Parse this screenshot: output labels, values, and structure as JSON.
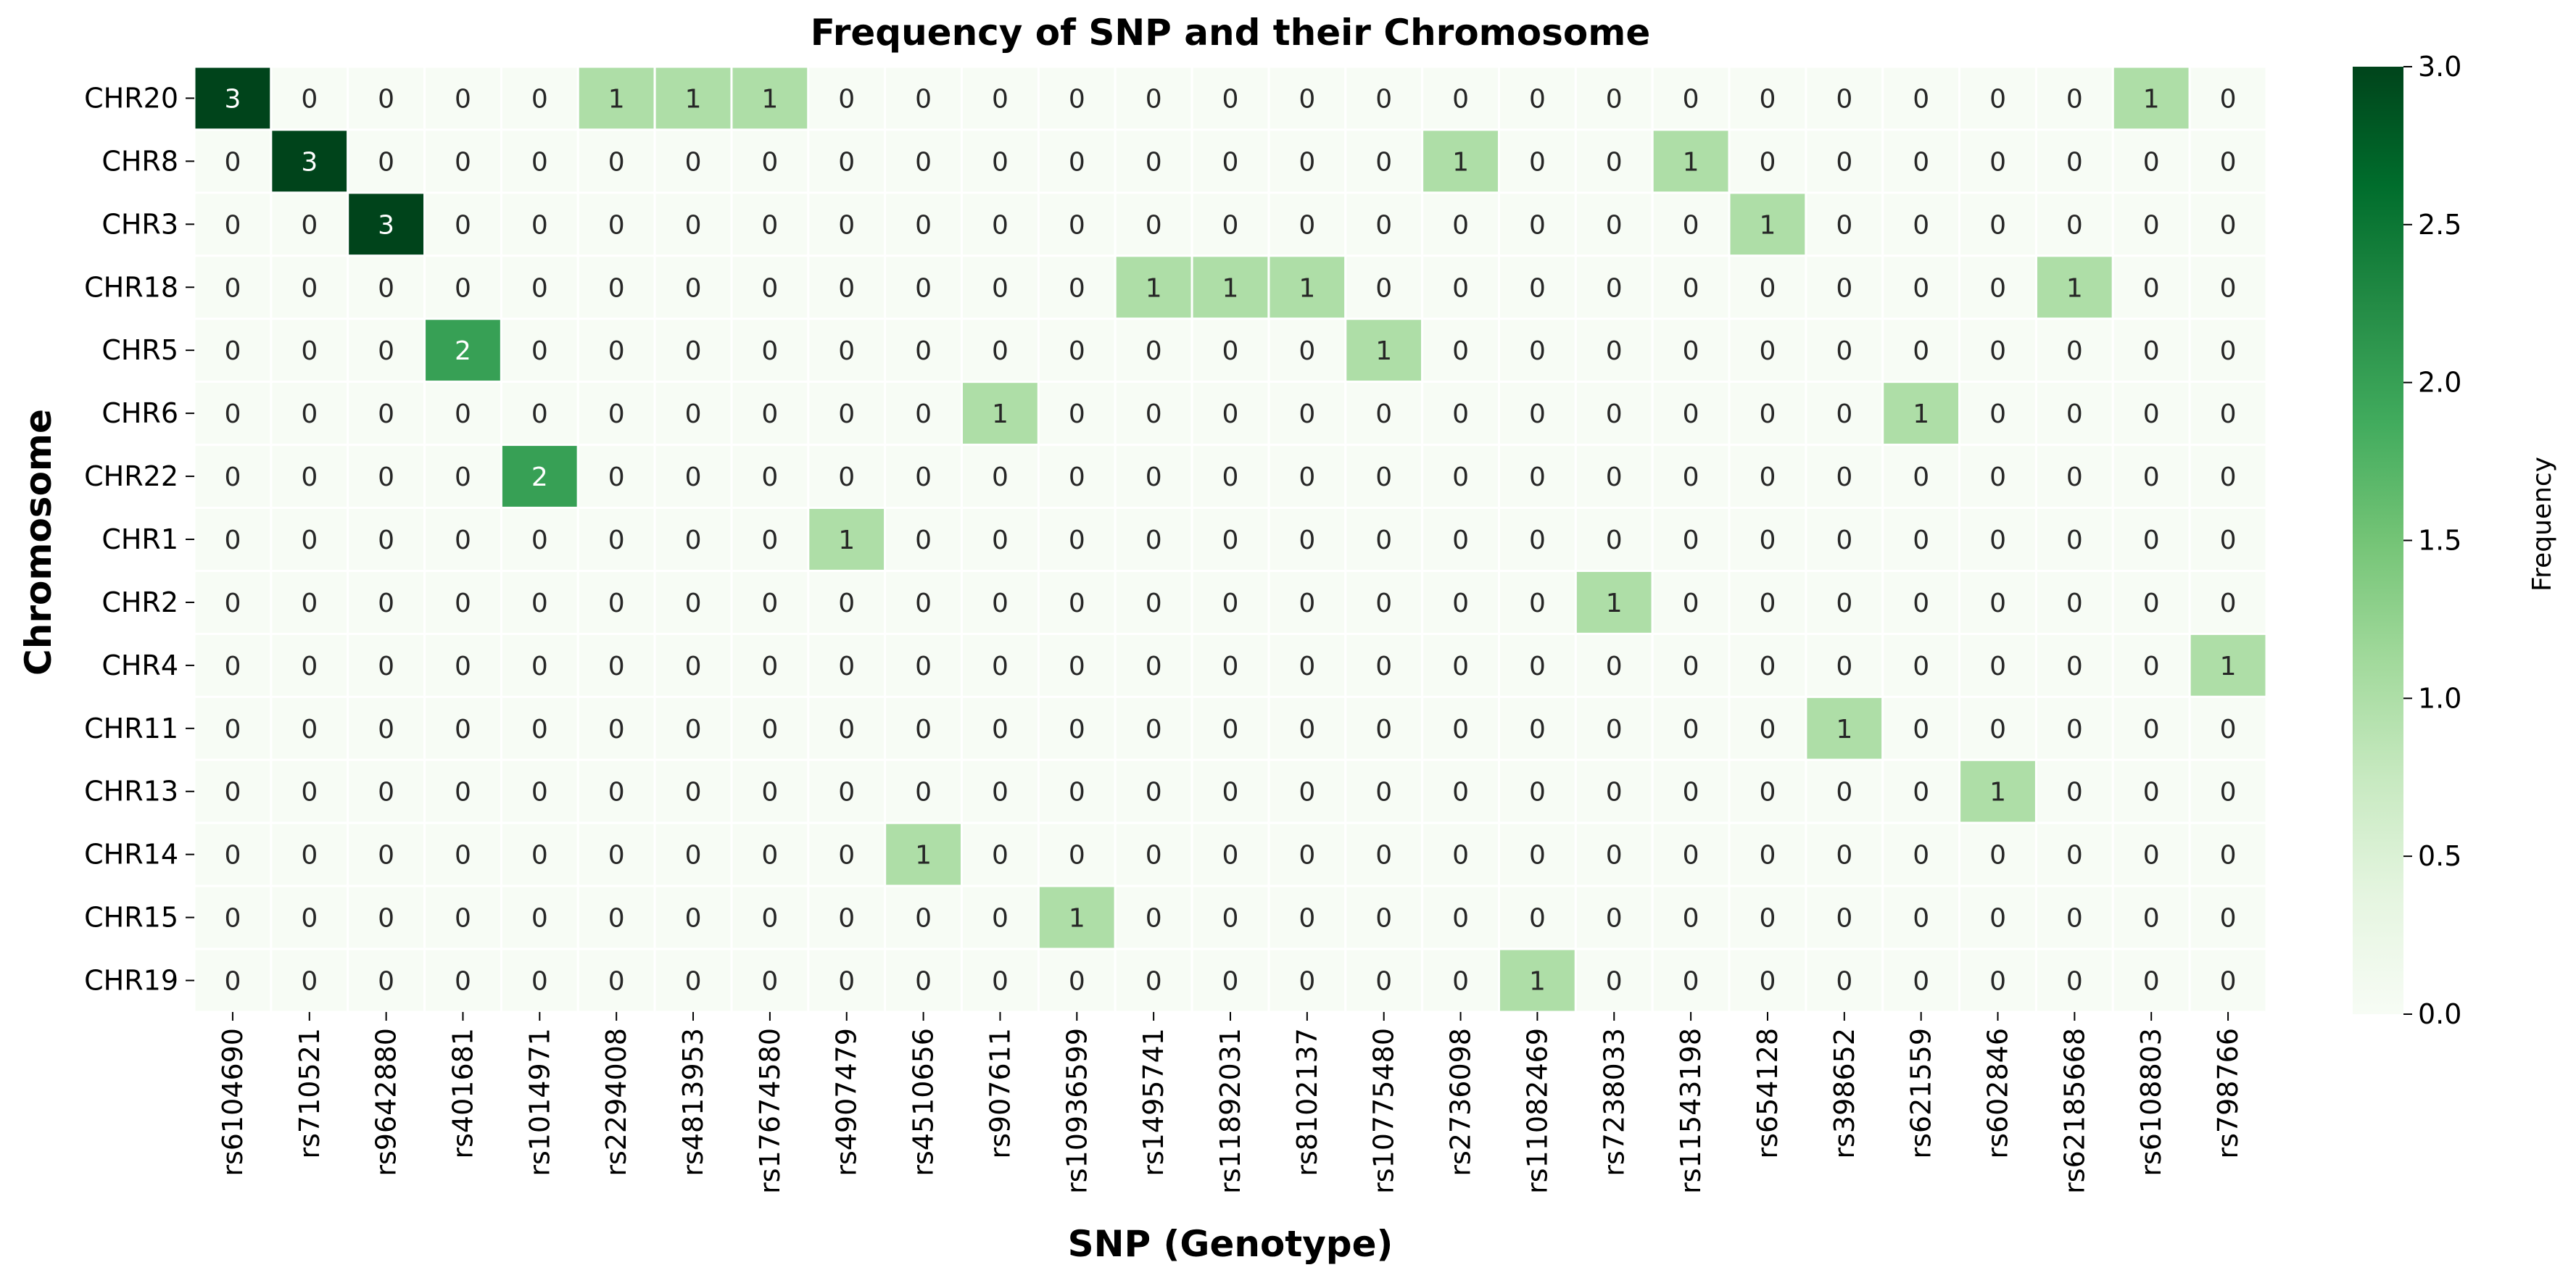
{
  "chart_data": {
    "type": "heatmap",
    "title": "Frequency of SNP and their Chromosome",
    "xlabel": "SNP (Genotype)",
    "ylabel": "Chromosome",
    "colorbar_label": "Frequency",
    "colorbar_ticks": [
      "0.0",
      "0.5",
      "1.0",
      "1.5",
      "2.0",
      "2.5",
      "3.0"
    ],
    "vmin": 0,
    "vmax": 3,
    "colormap": [
      "#f7fcf5",
      "#e5f5e0",
      "#c7e9c0",
      "#a1d99b",
      "#74c476",
      "#41ab5d",
      "#238b45",
      "#006d2c",
      "#00441b"
    ],
    "x_categories": [
      "rs6104690",
      "rs710521",
      "rs9642880",
      "rs401681",
      "rs1014971",
      "rs2294008",
      "rs4813953",
      "rs17674580",
      "rs4907479",
      "rs4510656",
      "rs907611",
      "rs10936599",
      "rs1495741",
      "rs11892031",
      "rs8102137",
      "rs10775480",
      "rs2736098",
      "rs11082469",
      "rs7238033",
      "rs11543198",
      "rs654128",
      "rs398652",
      "rs621559",
      "rs602846",
      "rs62185668",
      "rs6108803",
      "rs798766"
    ],
    "y_categories": [
      "CHR20",
      "CHR8",
      "CHR3",
      "CHR18",
      "CHR5",
      "CHR6",
      "CHR22",
      "CHR1",
      "CHR2",
      "CHR4",
      "CHR11",
      "CHR13",
      "CHR14",
      "CHR15",
      "CHR19"
    ],
    "values": [
      [
        3,
        0,
        0,
        0,
        0,
        1,
        1,
        1,
        0,
        0,
        0,
        0,
        0,
        0,
        0,
        0,
        0,
        0,
        0,
        0,
        0,
        0,
        0,
        0,
        0,
        1,
        0
      ],
      [
        0,
        3,
        0,
        0,
        0,
        0,
        0,
        0,
        0,
        0,
        0,
        0,
        0,
        0,
        0,
        0,
        1,
        0,
        0,
        1,
        0,
        0,
        0,
        0,
        0,
        0,
        0
      ],
      [
        0,
        0,
        3,
        0,
        0,
        0,
        0,
        0,
        0,
        0,
        0,
        0,
        0,
        0,
        0,
        0,
        0,
        0,
        0,
        0,
        1,
        0,
        0,
        0,
        0,
        0,
        0
      ],
      [
        0,
        0,
        0,
        0,
        0,
        0,
        0,
        0,
        0,
        0,
        0,
        0,
        1,
        1,
        1,
        0,
        0,
        0,
        0,
        0,
        0,
        0,
        0,
        0,
        1,
        0,
        0
      ],
      [
        0,
        0,
        0,
        2,
        0,
        0,
        0,
        0,
        0,
        0,
        0,
        0,
        0,
        0,
        0,
        1,
        0,
        0,
        0,
        0,
        0,
        0,
        0,
        0,
        0,
        0,
        0
      ],
      [
        0,
        0,
        0,
        0,
        0,
        0,
        0,
        0,
        0,
        0,
        1,
        0,
        0,
        0,
        0,
        0,
        0,
        0,
        0,
        0,
        0,
        0,
        1,
        0,
        0,
        0,
        0
      ],
      [
        0,
        0,
        0,
        0,
        2,
        0,
        0,
        0,
        0,
        0,
        0,
        0,
        0,
        0,
        0,
        0,
        0,
        0,
        0,
        0,
        0,
        0,
        0,
        0,
        0,
        0,
        0
      ],
      [
        0,
        0,
        0,
        0,
        0,
        0,
        0,
        0,
        1,
        0,
        0,
        0,
        0,
        0,
        0,
        0,
        0,
        0,
        0,
        0,
        0,
        0,
        0,
        0,
        0,
        0,
        0
      ],
      [
        0,
        0,
        0,
        0,
        0,
        0,
        0,
        0,
        0,
        0,
        0,
        0,
        0,
        0,
        0,
        0,
        0,
        0,
        1,
        0,
        0,
        0,
        0,
        0,
        0,
        0,
        0
      ],
      [
        0,
        0,
        0,
        0,
        0,
        0,
        0,
        0,
        0,
        0,
        0,
        0,
        0,
        0,
        0,
        0,
        0,
        0,
        0,
        0,
        0,
        0,
        0,
        0,
        0,
        0,
        1
      ],
      [
        0,
        0,
        0,
        0,
        0,
        0,
        0,
        0,
        0,
        0,
        0,
        0,
        0,
        0,
        0,
        0,
        0,
        0,
        0,
        0,
        0,
        1,
        0,
        0,
        0,
        0,
        0
      ],
      [
        0,
        0,
        0,
        0,
        0,
        0,
        0,
        0,
        0,
        0,
        0,
        0,
        0,
        0,
        0,
        0,
        0,
        0,
        0,
        0,
        0,
        0,
        0,
        1,
        0,
        0,
        0
      ],
      [
        0,
        0,
        0,
        0,
        0,
        0,
        0,
        0,
        0,
        1,
        0,
        0,
        0,
        0,
        0,
        0,
        0,
        0,
        0,
        0,
        0,
        0,
        0,
        0,
        0,
        0,
        0
      ],
      [
        0,
        0,
        0,
        0,
        0,
        0,
        0,
        0,
        0,
        0,
        0,
        1,
        0,
        0,
        0,
        0,
        0,
        0,
        0,
        0,
        0,
        0,
        0,
        0,
        0,
        0,
        0
      ],
      [
        0,
        0,
        0,
        0,
        0,
        0,
        0,
        0,
        0,
        0,
        0,
        0,
        0,
        0,
        0,
        0,
        0,
        1,
        0,
        0,
        0,
        0,
        0,
        0,
        0,
        0,
        0
      ]
    ],
    "annotate": true,
    "grid": true,
    "legend": "colorbar-right"
  }
}
